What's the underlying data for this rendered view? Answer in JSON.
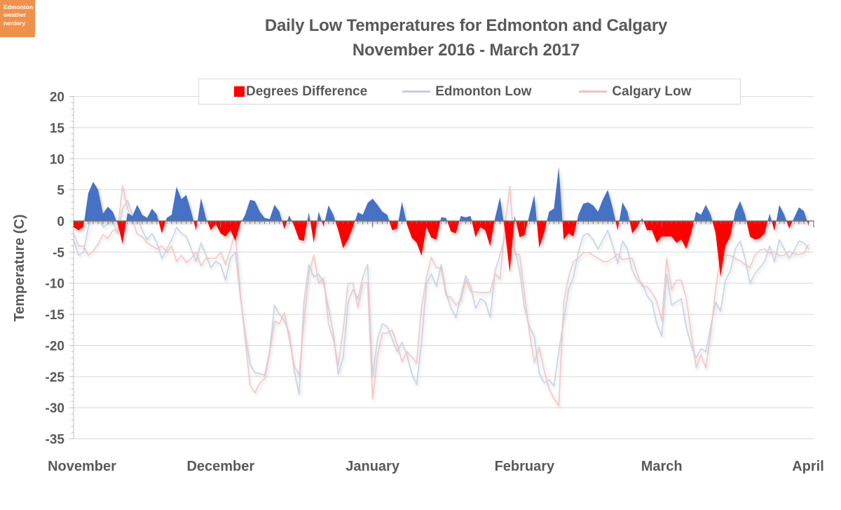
{
  "logo": {
    "line1": "Edmonton",
    "line2": "weather",
    "line3": "nerdery"
  },
  "title": {
    "line1": "Daily Low Temperatures for Edmonton and Calgary",
    "line2": "November 2016 - March 2017"
  },
  "legend": [
    {
      "label": "Degrees Difference",
      "marker": "square",
      "color": "#FF0000"
    },
    {
      "label": "Edmonton Low",
      "marker": "line",
      "color": "#BFCFE7"
    },
    {
      "label": "Calgary Low",
      "marker": "line",
      "color": "#F7BFC0"
    }
  ],
  "y_axis": {
    "title": "Temperature (C)",
    "ticks": [
      20,
      15,
      10,
      5,
      0,
      -5,
      -10,
      -15,
      -20,
      -25,
      -30,
      -35
    ]
  },
  "x_axis": {
    "labels": [
      "November",
      "December",
      "January",
      "February",
      "March",
      "April"
    ]
  },
  "colors": {
    "logo_bg": "#F0914B",
    "text": "#595959",
    "gridline": "#D9D9D9",
    "axis": "#757575",
    "difference_positive": "#4472C4",
    "difference_negative": "#FF0000",
    "edmonton_line": "#BFCFE7",
    "calgary_line": "#F7BFC0"
  },
  "chart_data": {
    "type": "area+line",
    "title": "Daily Low Temperatures for Edmonton and Calgary November 2016 - March 2017",
    "xlabel": "",
    "ylabel": "Temperature (C)",
    "ylim": [
      -35,
      20
    ],
    "grid": true,
    "legend_position": "top",
    "x_start": "2016-11-01",
    "x_end": "2017-03-31",
    "month_starts": [
      0,
      30,
      61,
      92,
      120,
      151
    ],
    "series": [
      {
        "name": "Degrees Difference",
        "type": "area",
        "positive_color": "#4472C4",
        "negative_color": "#FF0000",
        "values": [
          -1,
          -1.5,
          -1,
          4.5,
          6.3,
          5,
          1.2,
          2.3,
          1.5,
          -0.5,
          -3.7,
          1.3,
          0.8,
          2.6,
          1,
          0.5,
          2,
          1,
          -2,
          0.5,
          1,
          5.5,
          3.5,
          4.2,
          1.5,
          -1.5,
          3.7,
          0.5,
          -1.5,
          -0.5,
          -2,
          -2.5,
          -1.5,
          -3.2,
          -0.5,
          1,
          3.4,
          3.2,
          1.5,
          0.5,
          0.3,
          2.6,
          1.5,
          -1.3,
          0.9,
          -0.8,
          -3,
          -3.2,
          1.4,
          -3.5,
          1.5,
          -0.9,
          2.5,
          1,
          -1.5,
          -4.4,
          -3,
          -1,
          1.4,
          1,
          2.9,
          3.6,
          2.6,
          1.5,
          1,
          -1.5,
          -1.2,
          3.1,
          -0.5,
          -2.7,
          -3.5,
          -5.6,
          -1,
          -2.7,
          -3,
          0.6,
          0.5,
          -1.7,
          -2,
          0.8,
          0.6,
          0.8,
          -2.6,
          -1,
          -1.5,
          -4.1,
          0.5,
          3.8,
          -1.5,
          -8.3,
          0.8,
          -2.6,
          -2.3,
          1,
          4.2,
          -4.3,
          -2,
          1.5,
          2,
          8.7,
          -3,
          -2,
          -2.5,
          1,
          2.8,
          3,
          2.5,
          1.5,
          3.5,
          5,
          2,
          -1.5,
          3,
          1.5,
          -2,
          -1,
          0.5,
          -1.5,
          -1.5,
          -3.5,
          -2.5,
          -2.5,
          -2.5,
          -3.5,
          -3,
          -4.5,
          -2,
          1.5,
          1,
          2.6,
          1,
          -2,
          -9,
          -4,
          -2.5,
          1.5,
          3.2,
          1,
          -2.5,
          -3,
          -2.8,
          -2,
          1.2,
          -1.6,
          2.6,
          1,
          -1.2,
          0.5,
          2.2,
          1.6,
          -0.8
        ]
      },
      {
        "name": "Edmonton Low",
        "type": "line",
        "color": "#BFCFE7",
        "values": [
          -3,
          -5.5,
          -5,
          -1,
          1.5,
          1.3,
          -1,
          -0.5,
          0,
          -2,
          2,
          3.3,
          1,
          0.5,
          -1.5,
          -3,
          -2,
          -3.5,
          -6,
          -4.5,
          -3,
          -1,
          -2,
          -2.5,
          -4.5,
          -6.5,
          -3.5,
          -5.5,
          -7.5,
          -6.5,
          -7,
          -9.5,
          -6,
          -5,
          -12,
          -18,
          -23,
          -24.4,
          -24.5,
          -24.8,
          -21,
          -13.5,
          -15,
          -16,
          -18,
          -24,
          -27.8,
          -13,
          -7,
          -9,
          -8.5,
          -10,
          -14,
          -18,
          -24.6,
          -22,
          -13,
          -11,
          -12.5,
          -9,
          -7,
          -25,
          -19,
          -16.5,
          -17,
          -19,
          -21,
          -19.5,
          -21.5,
          -24.5,
          -26.3,
          -19.5,
          -10,
          -8.5,
          -10.5,
          -7,
          -11.5,
          -14,
          -15.5,
          -12,
          -8.8,
          -10.5,
          -14,
          -12.5,
          -13,
          -15.5,
          -8,
          -5.5,
          -2.5,
          -2.7,
          -4.5,
          -8,
          -14,
          -17,
          -18.5,
          -24.5,
          -26,
          -25.5,
          -26.5,
          -21,
          -16,
          -11,
          -9,
          -5,
          -2.3,
          -2,
          -3,
          -4.5,
          -3,
          -1.5,
          -4,
          -6.8,
          -3.2,
          -4.5,
          -8,
          -9.5,
          -10,
          -12,
          -13,
          -16.5,
          -18.5,
          -8.5,
          -13.5,
          -13,
          -12.5,
          -17,
          -20,
          -22,
          -20.5,
          -21,
          -17,
          -13,
          -14.5,
          -9.5,
          -8,
          -4.5,
          -3.2,
          -6,
          -10,
          -8.5,
          -7.5,
          -6.5,
          -4,
          -6.5,
          -3,
          -4.5,
          -6,
          -4.8,
          -3.2,
          -3.5,
          -4.5
        ]
      },
      {
        "name": "Calgary Low",
        "type": "line",
        "color": "#F7BFC0",
        "values": [
          -2,
          -4,
          -4,
          -5.5,
          -4.8,
          -3.7,
          -2.2,
          -2.8,
          -1.5,
          -1.5,
          5.7,
          2,
          0.2,
          -2.1,
          -2.5,
          -3.5,
          -4,
          -4.5,
          -4,
          -5,
          -4,
          -6.5,
          -5.5,
          -6.7,
          -6,
          -5,
          -7.2,
          -6,
          -6,
          -6,
          -5,
          -7,
          -4.5,
          -1.8,
          -11.5,
          -19,
          -26.4,
          -27.6,
          -26,
          -25.3,
          -21.3,
          -16.1,
          -16.5,
          -14.7,
          -18.9,
          -23.2,
          -24.8,
          -16.2,
          -8.4,
          -5.5,
          -10,
          -9.1,
          -16.5,
          -19,
          -23.1,
          -17.6,
          -10,
          -10,
          -13.9,
          -10,
          -9.9,
          -28.6,
          -21.6,
          -18,
          -18,
          -17.5,
          -19.8,
          -22.6,
          -21,
          -21.8,
          -22.8,
          -13.9,
          -9,
          -5.8,
          -7.5,
          -7.6,
          -12,
          -12.3,
          -13.5,
          -12.8,
          -9.4,
          -11.3,
          -11.4,
          -11.5,
          -11.5,
          -11.4,
          -8.5,
          -9.3,
          -1,
          5.6,
          -5.3,
          -5.4,
          -11.7,
          -18,
          -22.7,
          -20.2,
          -24,
          -27,
          -28.5,
          -29.7,
          -13,
          -9,
          -6.5,
          -6,
          -5.1,
          -5,
          -5.5,
          -6,
          -6.5,
          -6.5,
          -6,
          -5.3,
          -6.2,
          -6,
          -6,
          -8.5,
          -10.5,
          -10.5,
          -11.5,
          -13,
          -16,
          -6,
          -11,
          -9.5,
          -9.5,
          -12.5,
          -18,
          -23.5,
          -21.5,
          -23.6,
          -18,
          -11,
          -5.5,
          -5.5,
          -5.5,
          -6,
          -6.4,
          -7,
          -7.5,
          -5.5,
          -4.7,
          -4.5,
          -5.2,
          -4.9,
          -5.6,
          -5.5,
          -4.8,
          -5.3,
          -5.4,
          -5.1,
          -3.7
        ]
      }
    ]
  }
}
